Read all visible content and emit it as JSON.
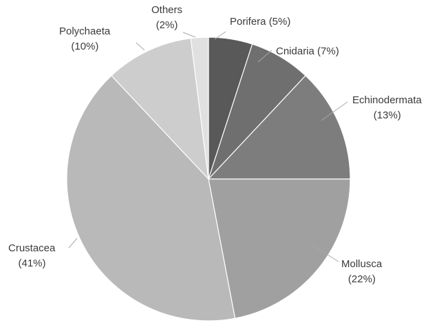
{
  "chart_data": {
    "type": "pie",
    "title": "",
    "slices": [
      {
        "name": "Porifera",
        "value": 5,
        "label_line1": "Porifera (5%)",
        "label_line2": "",
        "color": "#595959"
      },
      {
        "name": "Cnidaria",
        "value": 7,
        "label_line1": "Cnidaria (7%)",
        "label_line2": "",
        "color": "#6f6f6f"
      },
      {
        "name": "Echinodermata",
        "value": 13,
        "label_line1": "Echinodermata",
        "label_line2": "(13%)",
        "color": "#7d7d7d"
      },
      {
        "name": "Mollusca",
        "value": 22,
        "label_line1": "Mollusca",
        "label_line2": "(22%)",
        "color": "#a0a0a0"
      },
      {
        "name": "Crustacea",
        "value": 41,
        "label_line1": "Crustacea",
        "label_line2": "(41%)",
        "color": "#b9b9b9"
      },
      {
        "name": "Polychaeta",
        "value": 10,
        "label_line1": "Polychaeta",
        "label_line2": "(10%)",
        "color": "#cdcdcd"
      },
      {
        "name": "Others",
        "value": 2,
        "label_line1": "Others",
        "label_line2": "(2%)",
        "color": "#e0e0e0"
      }
    ]
  }
}
